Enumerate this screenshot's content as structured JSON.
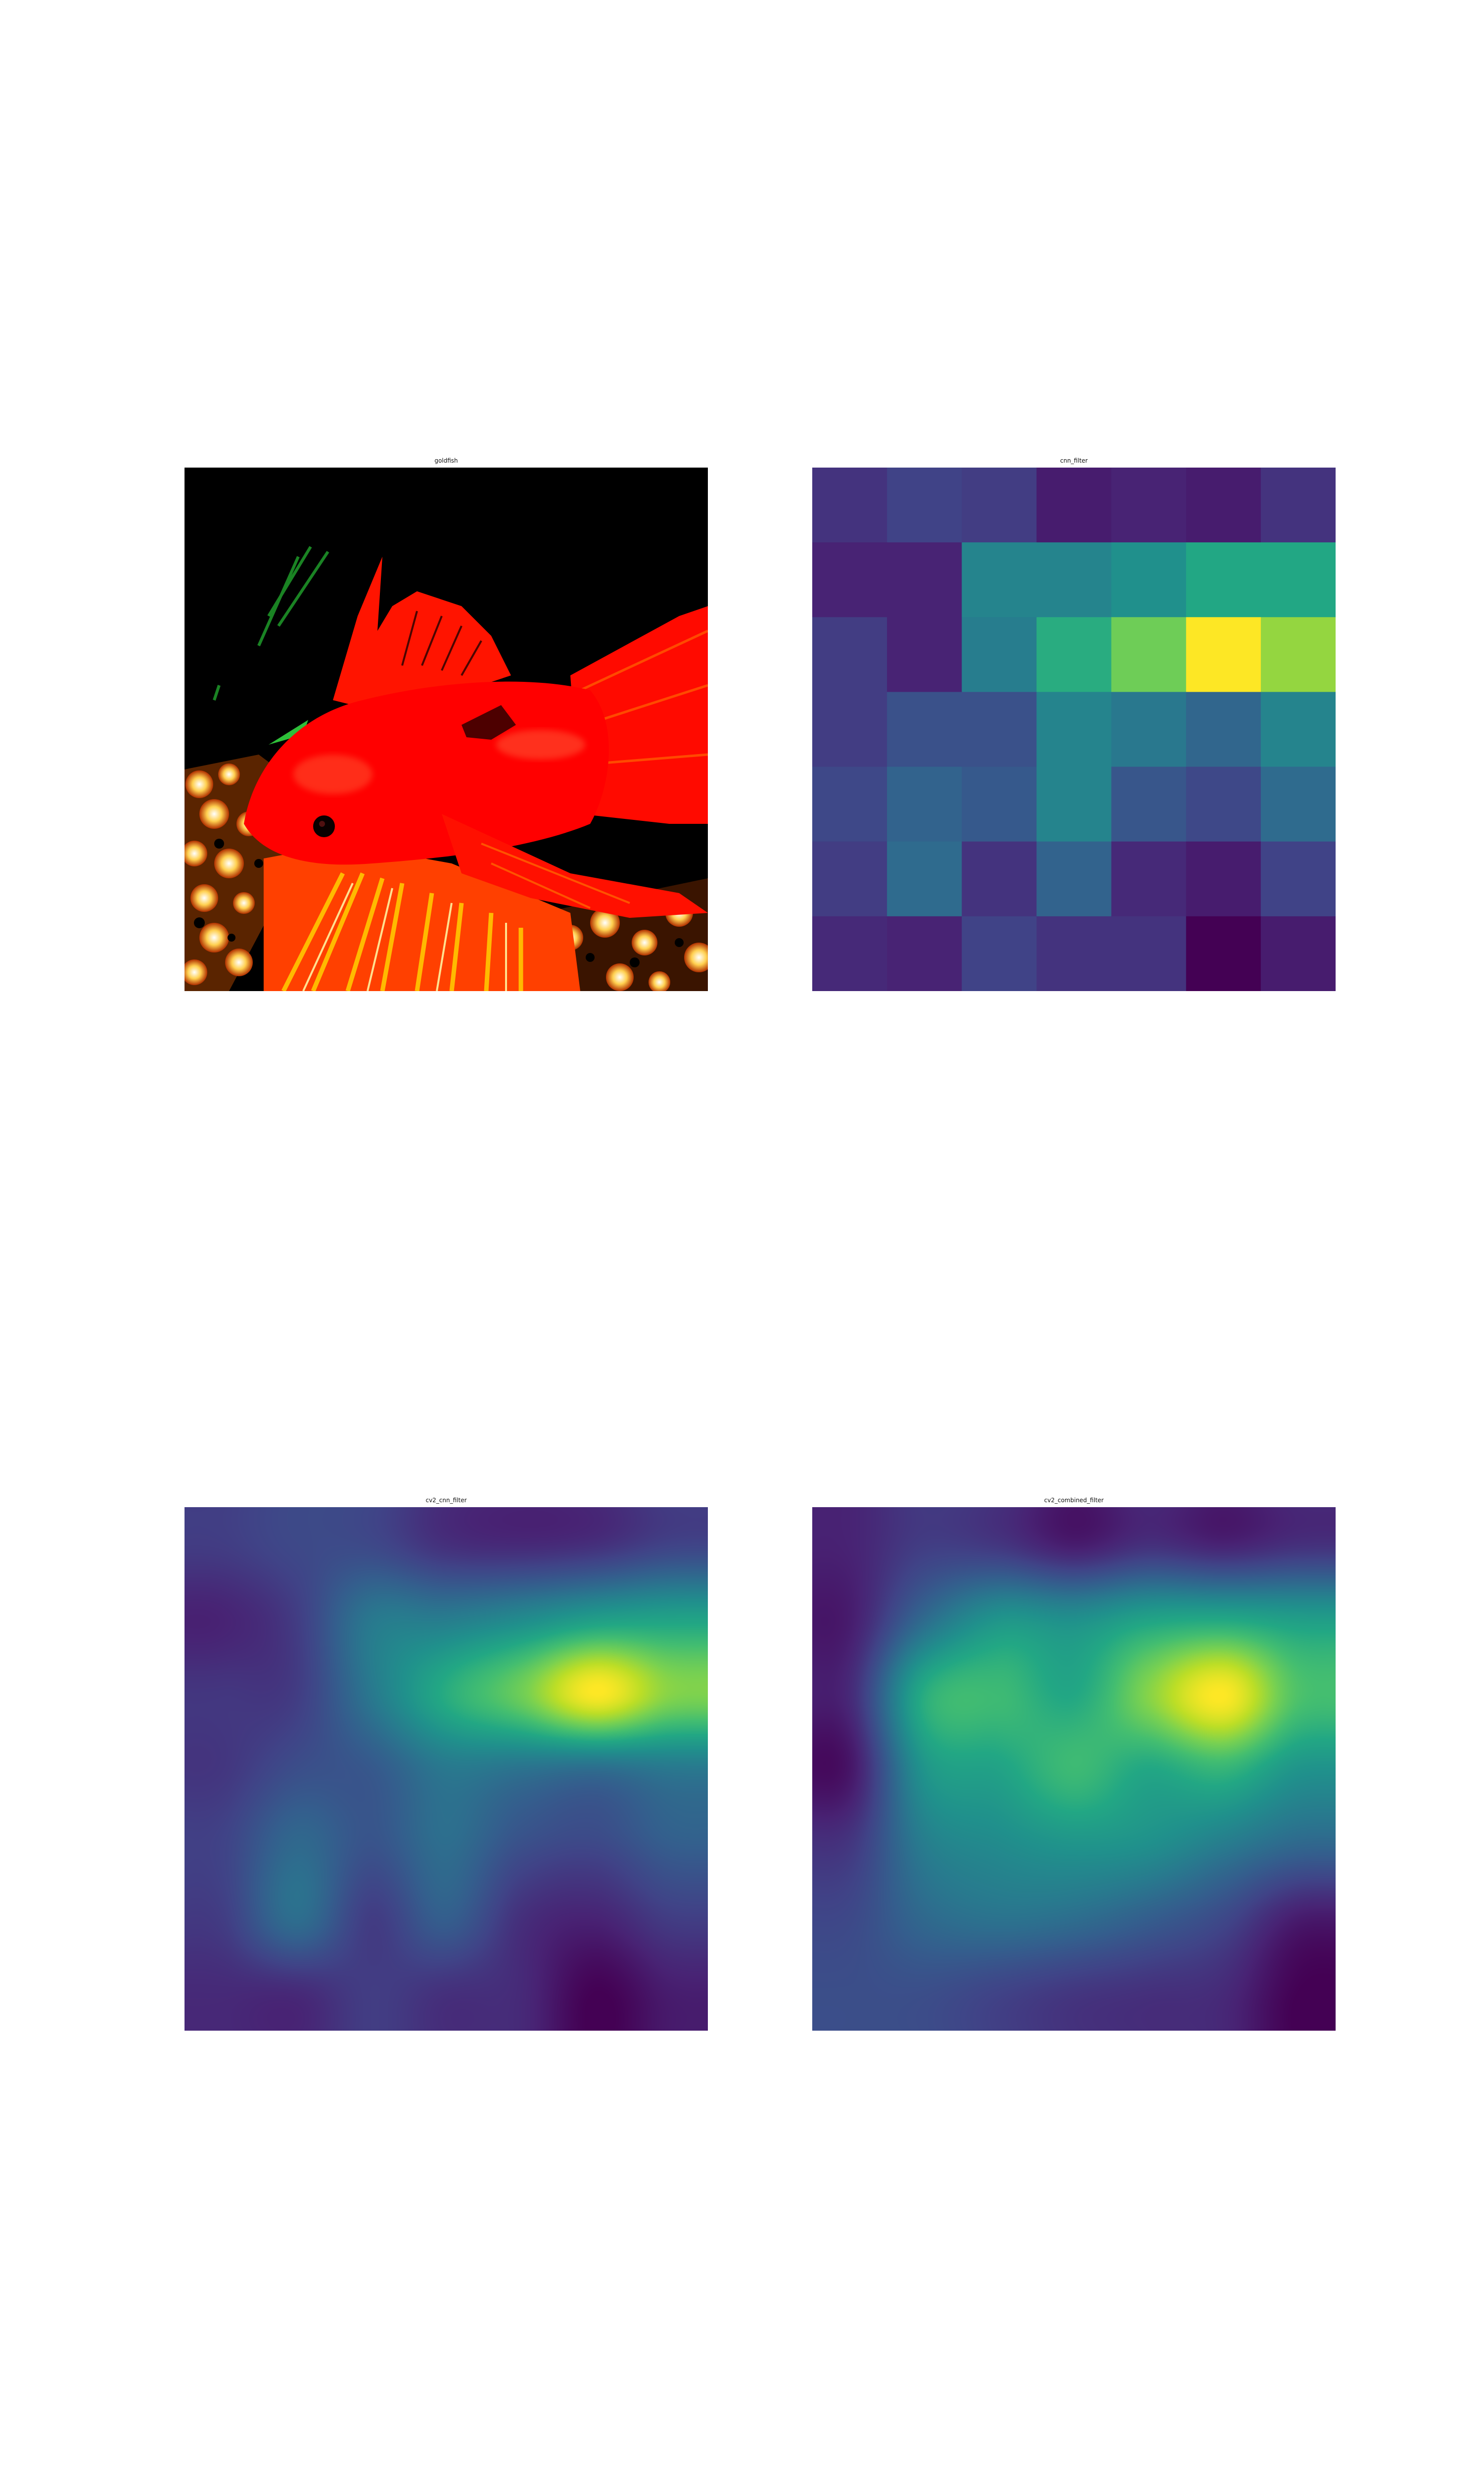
{
  "chart_data": [
    {
      "type": "other",
      "title": "goldfish"
    },
    {
      "type": "heatmap",
      "title": "cnn_filter",
      "colormap": "viridis",
      "grid": false,
      "rows": 7,
      "cols": 7,
      "values": [
        [
          0.15,
          0.2,
          0.18,
          0.08,
          0.1,
          0.08,
          0.15
        ],
        [
          0.1,
          0.1,
          0.45,
          0.45,
          0.5,
          0.6,
          0.6
        ],
        [
          0.18,
          0.1,
          0.42,
          0.62,
          0.78,
          1.0,
          0.84
        ],
        [
          0.18,
          0.25,
          0.25,
          0.45,
          0.4,
          0.33,
          0.45
        ],
        [
          0.22,
          0.32,
          0.28,
          0.45,
          0.27,
          0.22,
          0.35
        ],
        [
          0.18,
          0.35,
          0.15,
          0.32,
          0.12,
          0.08,
          0.2
        ],
        [
          0.12,
          0.1,
          0.2,
          0.15,
          0.15,
          0.0,
          0.08
        ]
      ]
    },
    {
      "type": "heatmap",
      "title": "cv2_cnn_filter",
      "colormap": "viridis",
      "grid": false,
      "interpolation": "smooth",
      "rows": 7,
      "cols": 7,
      "values": [
        [
          0.18,
          0.22,
          0.22,
          0.14,
          0.12,
          0.14,
          0.2
        ],
        [
          0.1,
          0.18,
          0.4,
          0.42,
          0.48,
          0.56,
          0.58
        ],
        [
          0.16,
          0.18,
          0.4,
          0.62,
          0.78,
          1.0,
          0.82
        ],
        [
          0.16,
          0.24,
          0.28,
          0.4,
          0.38,
          0.36,
          0.4
        ],
        [
          0.2,
          0.34,
          0.26,
          0.36,
          0.25,
          0.22,
          0.3
        ],
        [
          0.18,
          0.36,
          0.18,
          0.3,
          0.14,
          0.1,
          0.18
        ],
        [
          0.12,
          0.12,
          0.18,
          0.14,
          0.12,
          0.0,
          0.08
        ]
      ]
    },
    {
      "type": "heatmap",
      "title": "cv2_combined_filter",
      "colormap": "viridis",
      "grid": false,
      "interpolation": "smooth",
      "rows": 7,
      "cols": 7,
      "values": [
        [
          0.1,
          0.18,
          0.16,
          0.08,
          0.14,
          0.1,
          0.14
        ],
        [
          0.08,
          0.35,
          0.52,
          0.5,
          0.58,
          0.6,
          0.56
        ],
        [
          0.12,
          0.62,
          0.68,
          0.6,
          0.82,
          1.0,
          0.72
        ],
        [
          0.06,
          0.52,
          0.58,
          0.68,
          0.6,
          0.66,
          0.52
        ],
        [
          0.16,
          0.42,
          0.48,
          0.52,
          0.5,
          0.42,
          0.34
        ],
        [
          0.22,
          0.34,
          0.38,
          0.36,
          0.3,
          0.22,
          0.08
        ],
        [
          0.24,
          0.24,
          0.2,
          0.16,
          0.14,
          0.12,
          0.0
        ]
      ]
    }
  ]
}
